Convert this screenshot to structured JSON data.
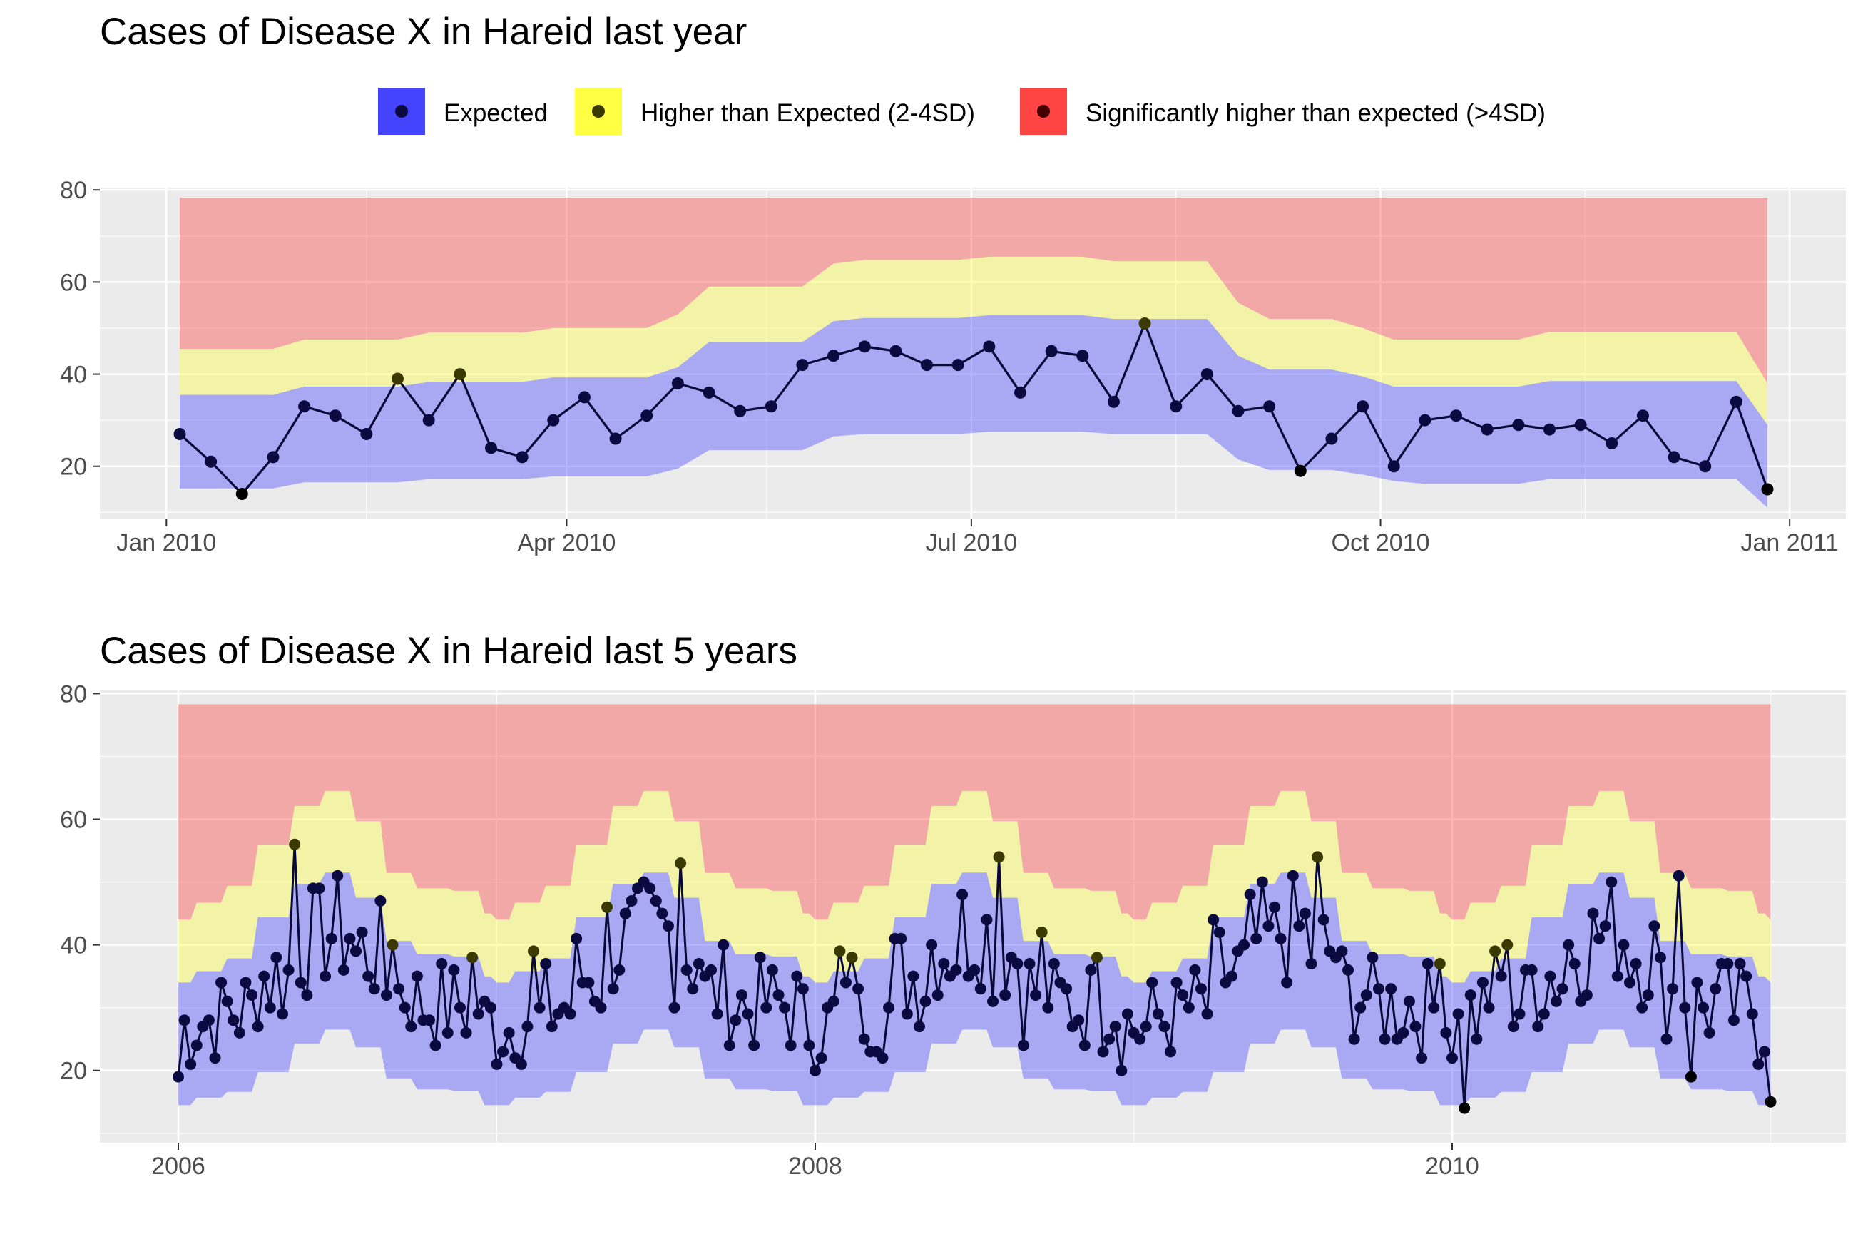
{
  "colors": {
    "panel_bg": "#ebebeb",
    "grid": "#ffffff",
    "expected": "#4444ff",
    "higher": "#ffff44",
    "significant": "#ff4444",
    "line": "#0a0a3a",
    "point_expected": "#0a0a40",
    "point_higher": "#3a3a00",
    "point_low": "#000000"
  },
  "legend": {
    "items": [
      {
        "label": "Expected",
        "key": "expected"
      },
      {
        "label": "Higher than Expected (2-4SD)",
        "key": "higher"
      },
      {
        "label": "Significantly higher than expected (>4SD)",
        "key": "significant"
      }
    ]
  },
  "chart_data": [
    {
      "type": "area",
      "title": "Cases of Disease X in Hareid last year",
      "xlabel": "",
      "ylabel": "",
      "x_tick_labels": [
        "Jan 2010",
        "Apr 2010",
        "Jul 2010",
        "Oct 2010",
        "Jan 2011"
      ],
      "y_ticks": [
        20,
        40,
        60,
        80
      ],
      "ylim": [
        8.5,
        80.5
      ],
      "x_unit": "week of 2010",
      "weeks": [
        1,
        2,
        3,
        4,
        5,
        6,
        7,
        8,
        9,
        10,
        11,
        12,
        13,
        14,
        15,
        16,
        17,
        18,
        19,
        20,
        21,
        22,
        23,
        24,
        25,
        26,
        27,
        28,
        29,
        30,
        31,
        32,
        33,
        34,
        35,
        36,
        37,
        38,
        39,
        40,
        41,
        42,
        43,
        44,
        45,
        46,
        47,
        48,
        49,
        50,
        51,
        52
      ],
      "cases": [
        27,
        21,
        14,
        22,
        33,
        31,
        27,
        39,
        30,
        40,
        24,
        22,
        30,
        35,
        26,
        31,
        38,
        36,
        32,
        33,
        42,
        44,
        46,
        45,
        42,
        42,
        46,
        36,
        45,
        44,
        34,
        51,
        33,
        40,
        32,
        33,
        19,
        26,
        33,
        20,
        30,
        31,
        28,
        29,
        28,
        29,
        25,
        31,
        22,
        20,
        34,
        15
      ],
      "status": [
        "expected",
        "expected",
        "low",
        "expected",
        "expected",
        "expected",
        "expected",
        "higher",
        "expected",
        "higher",
        "expected",
        "expected",
        "expected",
        "expected",
        "expected",
        "expected",
        "expected",
        "expected",
        "expected",
        "expected",
        "expected",
        "expected",
        "expected",
        "expected",
        "expected",
        "expected",
        "expected",
        "expected",
        "expected",
        "expected",
        "expected",
        "higher",
        "expected",
        "expected",
        "expected",
        "expected",
        "low",
        "expected",
        "expected",
        "expected",
        "expected",
        "expected",
        "expected",
        "expected",
        "expected",
        "expected",
        "expected",
        "expected",
        "expected",
        "expected",
        "expected",
        "low"
      ],
      "band_lower": [
        15.2,
        15.2,
        15.2,
        15.2,
        16.5,
        16.5,
        16.5,
        16.5,
        17.2,
        17.2,
        17.2,
        17.2,
        17.8,
        17.8,
        17.8,
        17.8,
        19.5,
        23.5,
        23.5,
        23.5,
        23.5,
        26.5,
        27.0,
        27.0,
        27.0,
        27.0,
        27.5,
        27.5,
        27.5,
        27.5,
        27.0,
        27.0,
        27.0,
        27.0,
        21.5,
        19.2,
        19.2,
        19.2,
        18.2,
        16.8,
        16.2,
        16.2,
        16.2,
        16.2,
        17.2,
        17.2,
        17.2,
        17.2,
        17.2,
        17.2,
        17.2,
        11.0
      ],
      "expected_upper": [
        35.5,
        35.5,
        35.5,
        35.5,
        37.3,
        37.3,
        37.3,
        37.3,
        38.3,
        38.3,
        38.3,
        38.3,
        39.3,
        39.3,
        39.3,
        39.3,
        41.5,
        47.0,
        47.0,
        47.0,
        47.0,
        51.5,
        52.2,
        52.2,
        52.2,
        52.2,
        52.8,
        52.8,
        52.8,
        52.8,
        52.0,
        52.0,
        52.0,
        52.0,
        44.0,
        41.0,
        41.0,
        41.0,
        39.5,
        37.3,
        37.3,
        37.3,
        37.3,
        37.3,
        38.5,
        38.5,
        38.5,
        38.5,
        38.5,
        38.5,
        38.5,
        29.0
      ],
      "higher_upper": [
        45.5,
        45.5,
        45.5,
        45.5,
        47.5,
        47.5,
        47.5,
        47.5,
        49.0,
        49.0,
        49.0,
        49.0,
        50.0,
        50.0,
        50.0,
        50.0,
        53.0,
        59.0,
        59.0,
        59.0,
        59.0,
        64.0,
        64.8,
        64.8,
        64.8,
        64.8,
        65.5,
        65.5,
        65.5,
        65.5,
        64.5,
        64.5,
        64.5,
        64.5,
        55.5,
        52.0,
        52.0,
        52.0,
        50.0,
        47.5,
        47.5,
        47.5,
        47.5,
        47.5,
        49.2,
        49.2,
        49.2,
        49.2,
        49.2,
        49.2,
        49.2,
        38.0
      ],
      "significant_upper": 78.3
    },
    {
      "type": "area",
      "title": "Cases of Disease X in Hareid last 5 years",
      "xlabel": "",
      "ylabel": "",
      "x_tick_labels": [
        "2006",
        "2008",
        "2010"
      ],
      "y_ticks": [
        20,
        40,
        60,
        80
      ],
      "ylim": [
        8.5,
        80.5
      ],
      "xlim": [
        2005.75,
        2011.25
      ],
      "x_unit": "year",
      "years": [
        2006,
        2007,
        2008,
        2009,
        2010
      ],
      "band_lower": [
        14.5,
        15.8,
        16.8,
        21.0,
        26.5,
        26.5,
        19.5,
        17.0,
        17.0,
        14.5
      ],
      "expected_upper": [
        34.0,
        36.0,
        38.3,
        47.0,
        51.5,
        51.5,
        41.5,
        38.5,
        38.5,
        35.0
      ],
      "higher_upper": [
        44.0,
        47.0,
        50.0,
        58.5,
        64.5,
        64.5,
        52.5,
        49.0,
        49.0,
        45.0
      ],
      "significant_upper": 78.3,
      "points": [
        [
          2006.0,
          19,
          "expected"
        ],
        [
          2006.37,
          56,
          "higher"
        ],
        [
          2006.67,
          40,
          "higher"
        ],
        [
          2006.92,
          38,
          "higher"
        ],
        [
          2007.12,
          39,
          "higher"
        ],
        [
          2007.35,
          46,
          "higher"
        ],
        [
          2007.58,
          53,
          "higher"
        ],
        [
          2008.08,
          39,
          "higher"
        ],
        [
          2008.12,
          38,
          "higher"
        ],
        [
          2008.58,
          54,
          "higher"
        ],
        [
          2008.72,
          42,
          "higher"
        ],
        [
          2008.88,
          38,
          "higher"
        ],
        [
          2009.57,
          54,
          "higher"
        ],
        [
          2009.97,
          37,
          "higher"
        ],
        [
          2010.04,
          14,
          "low"
        ],
        [
          2010.14,
          39,
          "higher"
        ],
        [
          2010.18,
          40,
          "higher"
        ],
        [
          2010.72,
          51,
          "expected"
        ],
        [
          2010.75,
          19,
          "low"
        ],
        [
          2011.0,
          34,
          "expected"
        ],
        [
          2011.0,
          15,
          "low"
        ]
      ]
    }
  ]
}
